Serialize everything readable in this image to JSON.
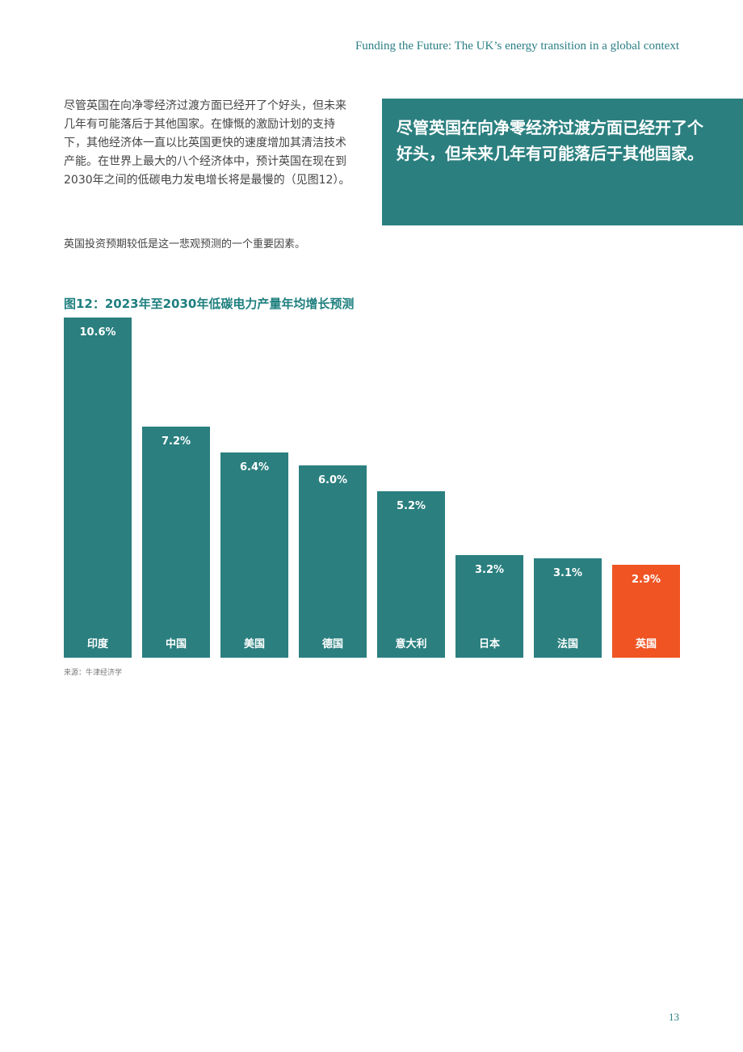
{
  "header": {
    "title": "Funding the Future: The UK’s energy transition in a global context"
  },
  "body": {
    "paragraph1": "尽管英国在向净零经济过渡方面已经开了个好头，但未来几年有可能落后于其他国家。在慷慨的激励计划的支持下，其他经济体一直以比英国更快的速度增加其清洁技术产能。在世界上最大的八个经济体中，预计英国在现在到2030年之间的低碳电力发电增长将是最慢的（见图12）。",
    "paragraph2": "英国投资预期较低是这一悲观预测的一个重要因素。"
  },
  "callout": {
    "text": "尽管英国在向净零经济过渡方面已经开了个好头，但未来几年有可能落后于其他国家。"
  },
  "chart_data": {
    "type": "bar",
    "title": "图12：2023年至2030年低碳电力产量年均增长预测",
    "categories": [
      "印度",
      "中国",
      "美国",
      "德国",
      "意大利",
      "日本",
      "法国",
      "英国"
    ],
    "values": [
      10.6,
      7.2,
      6.4,
      6.0,
      5.2,
      3.2,
      3.1,
      2.9
    ],
    "value_labels": [
      "10.6%",
      "7.2%",
      "6.4%",
      "6.0%",
      "5.2%",
      "3.2%",
      "3.1%",
      "2.9%"
    ],
    "unit": "%",
    "xlabel": "",
    "ylabel": "",
    "grid": false,
    "colors": {
      "default": "#2b7f7f",
      "highlight": "#f05423"
    },
    "highlight_category": "英国"
  },
  "source": {
    "text": "来源：牛津经济学"
  },
  "footer": {
    "page_number": "13"
  }
}
